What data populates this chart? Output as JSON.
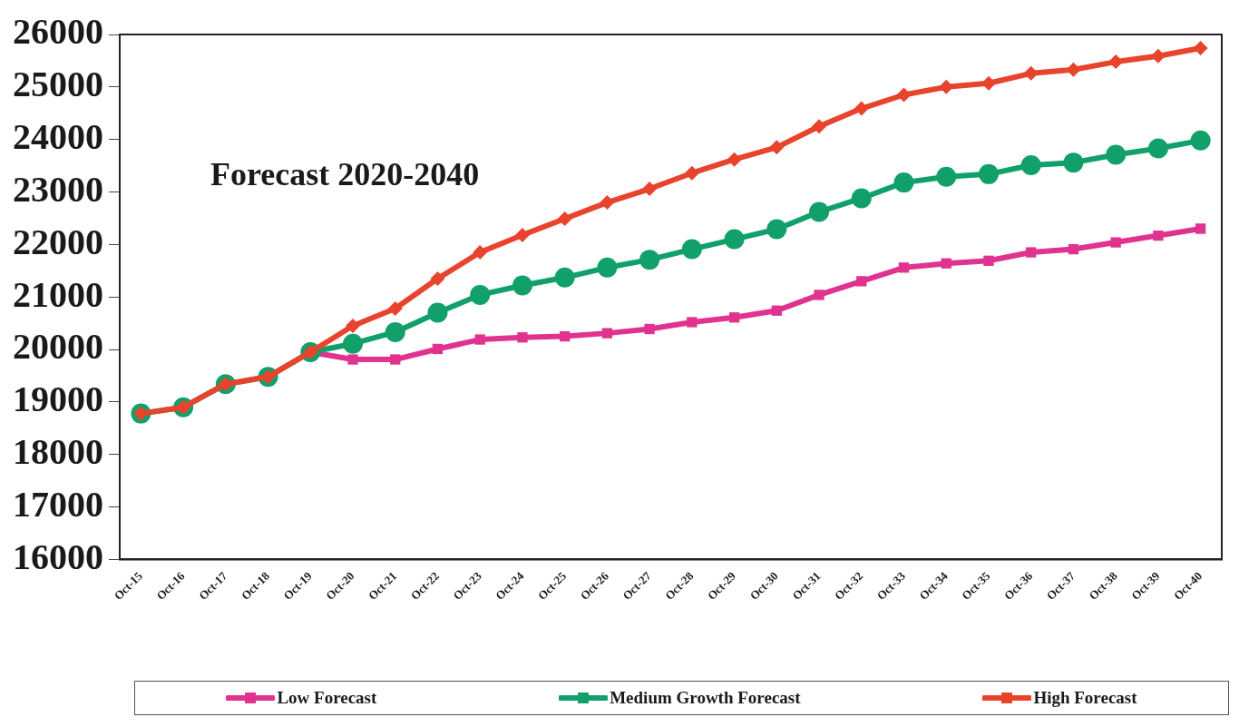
{
  "chart_data": {
    "type": "line",
    "title": "Forecast 2020-2040",
    "categories": [
      "Oct-15",
      "Oct-16",
      "Oct-17",
      "Oct-18",
      "Oct-19",
      "Oct-20",
      "Oct-21",
      "Oct-22",
      "Oct-23",
      "Oct-24",
      "Oct-25",
      "Oct-26",
      "Oct-27",
      "Oct-28",
      "Oct-29",
      "Oct-30",
      "Oct-31",
      "Oct-32",
      "Oct-33",
      "Oct-34",
      "Oct-35",
      "Oct-36",
      "Oct-37",
      "Oct-38",
      "Oct-39",
      "Oct-40"
    ],
    "series": [
      {
        "name": "Low Forecast",
        "color": "#e0338f",
        "marker": "square",
        "values": [
          null,
          null,
          null,
          null,
          19950,
          19810,
          19810,
          20010,
          20190,
          20230,
          20250,
          20310,
          20390,
          20520,
          20610,
          20740,
          21040,
          21300,
          21560,
          21640,
          21690,
          21850,
          21910,
          22040,
          22170,
          22300
        ]
      },
      {
        "name": "Medium Growth Forecast",
        "color": "#12a06a",
        "marker": "circle",
        "values": [
          18780,
          18900,
          19340,
          19480,
          19950,
          20110,
          20330,
          20700,
          21040,
          21220,
          21370,
          21560,
          21710,
          21910,
          22100,
          22290,
          22620,
          22880,
          23180,
          23290,
          23340,
          23510,
          23560,
          23710,
          23830,
          23980
        ]
      },
      {
        "name": "High Forecast",
        "color": "#e8432d",
        "marker": "diamond",
        "values": [
          18780,
          18900,
          19340,
          19480,
          19950,
          20450,
          20780,
          21350,
          21850,
          22180,
          22490,
          22800,
          23060,
          23360,
          23620,
          23850,
          24250,
          24590,
          24850,
          25000,
          25070,
          25260,
          25330,
          25480,
          25590,
          25740
        ]
      }
    ],
    "ylim": [
      16000,
      26000
    ],
    "yticks": [
      16000,
      17000,
      18000,
      19000,
      20000,
      21000,
      22000,
      23000,
      24000,
      25000,
      26000
    ],
    "grid": false,
    "legend": "bottom"
  }
}
